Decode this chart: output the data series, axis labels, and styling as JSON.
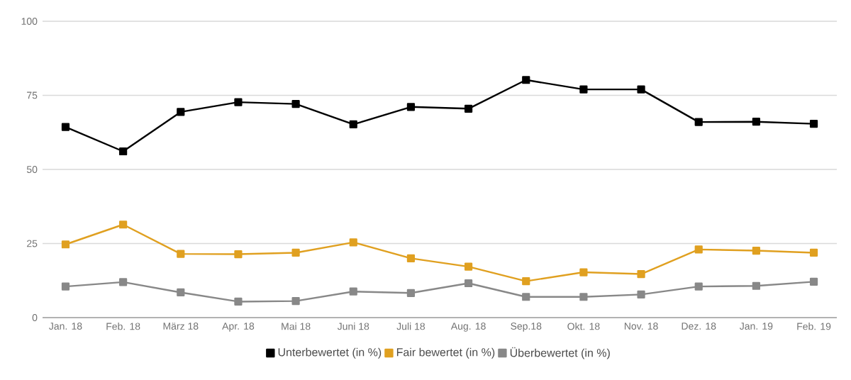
{
  "chart_data": {
    "type": "line",
    "categories": [
      "Jan. 18",
      "Feb. 18",
      "März 18",
      "Apr. 18",
      "Mai 18",
      "Juni 18",
      "Juli 18",
      "Aug. 18",
      "Sep.18",
      "Okt. 18",
      "Nov. 18",
      "Dez. 18",
      "Jan. 19",
      "Feb. 19"
    ],
    "series": [
      {
        "name": "Unterbewertet (in %)",
        "color": "#000000",
        "values": [
          64.3,
          56.1,
          69.4,
          72.7,
          72.1,
          65.2,
          71.1,
          70.5,
          80.2,
          77,
          77,
          66,
          66.1,
          65.4
        ]
      },
      {
        "name": "Fair bewertet (in %)",
        "color": "#e0a020",
        "values": [
          24.7,
          31.4,
          21.5,
          21.4,
          21.9,
          25.4,
          20,
          17.2,
          12.3,
          15.3,
          14.7,
          23,
          22.6,
          21.9
        ]
      },
      {
        "name": "Überbewertet (in %)",
        "color": "#888888",
        "values": [
          10.5,
          12,
          8.5,
          5.4,
          5.6,
          8.8,
          8.3,
          11.6,
          7,
          7,
          7.8,
          10.5,
          10.7,
          12.1
        ]
      }
    ],
    "ylim": [
      0,
      100
    ],
    "yticks": [
      0,
      25,
      50,
      75,
      100
    ],
    "grid": "y",
    "legend": "bottom",
    "marker": "square",
    "line_style": "solid"
  }
}
